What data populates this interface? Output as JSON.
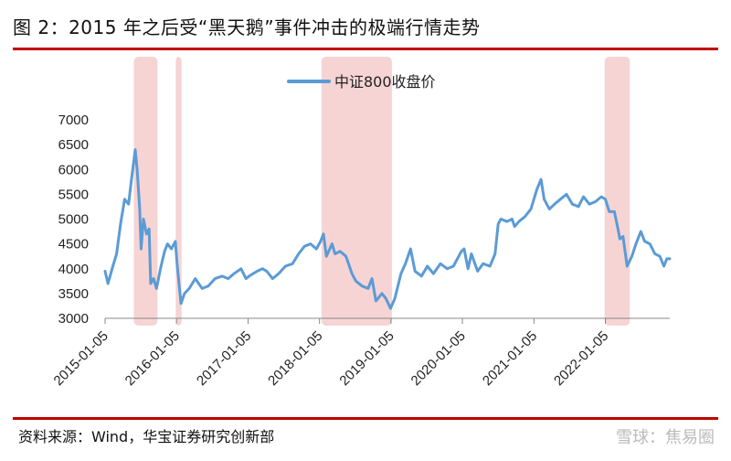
{
  "figure": {
    "title": "图 2：2015 年之后受“黑天鹅”事件冲击的极端行情走势",
    "source": "资料来源：Wind，华宝证券研究创新部",
    "watermark": "雪球：焦易圈"
  },
  "chart_data": {
    "type": "line",
    "title": "",
    "xlabel": "",
    "ylabel": "",
    "ylim": [
      3000,
      7000
    ],
    "yticks": [
      3000,
      3500,
      4000,
      4500,
      5000,
      5500,
      6000,
      6500,
      7000
    ],
    "xticks": [
      "2015-01-05",
      "2016-01-05",
      "2017-01-05",
      "2018-01-05",
      "2019-01-05",
      "2020-01-05",
      "2021-01-05",
      "2022-01-05"
    ],
    "xrange": [
      "2015-01-05",
      "2022-11-30"
    ],
    "legend": "top-center",
    "series": [
      {
        "name": "中证800收盘价",
        "color": "#5b9bd5",
        "points": [
          [
            "2015-01-05",
            3950
          ],
          [
            "2015-01-20",
            3700
          ],
          [
            "2015-02-10",
            4000
          ],
          [
            "2015-03-05",
            4300
          ],
          [
            "2015-03-25",
            4900
          ],
          [
            "2015-04-15",
            5400
          ],
          [
            "2015-05-05",
            5300
          ],
          [
            "2015-05-20",
            5800
          ],
          [
            "2015-06-08",
            6400
          ],
          [
            "2015-06-18",
            6000
          ],
          [
            "2015-07-01",
            5200
          ],
          [
            "2015-07-08",
            4400
          ],
          [
            "2015-07-20",
            5000
          ],
          [
            "2015-08-05",
            4700
          ],
          [
            "2015-08-18",
            4800
          ],
          [
            "2015-08-26",
            3700
          ],
          [
            "2015-09-10",
            3800
          ],
          [
            "2015-09-25",
            3600
          ],
          [
            "2015-10-15",
            4000
          ],
          [
            "2015-11-05",
            4350
          ],
          [
            "2015-11-20",
            4500
          ],
          [
            "2015-12-10",
            4400
          ],
          [
            "2015-12-30",
            4550
          ],
          [
            "2016-01-08",
            4100
          ],
          [
            "2016-01-18",
            3700
          ],
          [
            "2016-01-28",
            3300
          ],
          [
            "2016-02-15",
            3500
          ],
          [
            "2016-03-10",
            3600
          ],
          [
            "2016-04-10",
            3800
          ],
          [
            "2016-05-15",
            3600
          ],
          [
            "2016-06-15",
            3650
          ],
          [
            "2016-07-20",
            3800
          ],
          [
            "2016-08-25",
            3850
          ],
          [
            "2016-09-25",
            3800
          ],
          [
            "2016-10-25",
            3900
          ],
          [
            "2016-11-30",
            4000
          ],
          [
            "2016-12-25",
            3800
          ],
          [
            "2017-01-10",
            3850
          ],
          [
            "2017-02-20",
            3950
          ],
          [
            "2017-03-20",
            4000
          ],
          [
            "2017-04-10",
            3950
          ],
          [
            "2017-05-10",
            3800
          ],
          [
            "2017-06-10",
            3900
          ],
          [
            "2017-07-15",
            4050
          ],
          [
            "2017-08-20",
            4100
          ],
          [
            "2017-09-20",
            4300
          ],
          [
            "2017-10-20",
            4450
          ],
          [
            "2017-11-20",
            4500
          ],
          [
            "2017-12-20",
            4400
          ],
          [
            "2018-01-10",
            4550
          ],
          [
            "2018-01-25",
            4700
          ],
          [
            "2018-02-09",
            4250
          ],
          [
            "2018-03-10",
            4500
          ],
          [
            "2018-03-25",
            4300
          ],
          [
            "2018-04-20",
            4350
          ],
          [
            "2018-05-20",
            4250
          ],
          [
            "2018-06-20",
            3900
          ],
          [
            "2018-07-10",
            3750
          ],
          [
            "2018-08-10",
            3650
          ],
          [
            "2018-09-10",
            3600
          ],
          [
            "2018-09-30",
            3800
          ],
          [
            "2018-10-20",
            3350
          ],
          [
            "2018-11-20",
            3500
          ],
          [
            "2018-12-10",
            3400
          ],
          [
            "2019-01-03",
            3200
          ],
          [
            "2019-01-25",
            3400
          ],
          [
            "2019-02-25",
            3900
          ],
          [
            "2019-03-20",
            4100
          ],
          [
            "2019-04-15",
            4400
          ],
          [
            "2019-05-08",
            3950
          ],
          [
            "2019-06-10",
            3850
          ],
          [
            "2019-07-10",
            4050
          ],
          [
            "2019-08-10",
            3900
          ],
          [
            "2019-09-15",
            4100
          ],
          [
            "2019-10-20",
            4000
          ],
          [
            "2019-11-20",
            4050
          ],
          [
            "2019-12-31",
            4350
          ],
          [
            "2020-01-14",
            4400
          ],
          [
            "2020-02-03",
            4000
          ],
          [
            "2020-02-20",
            4300
          ],
          [
            "2020-03-23",
            3950
          ],
          [
            "2020-04-20",
            4100
          ],
          [
            "2020-05-25",
            4050
          ],
          [
            "2020-06-20",
            4300
          ],
          [
            "2020-07-06",
            4900
          ],
          [
            "2020-07-20",
            5000
          ],
          [
            "2020-08-20",
            4950
          ],
          [
            "2020-09-15",
            5000
          ],
          [
            "2020-09-28",
            4850
          ],
          [
            "2020-10-20",
            4950
          ],
          [
            "2020-11-20",
            5050
          ],
          [
            "2020-12-20",
            5200
          ],
          [
            "2021-01-20",
            5600
          ],
          [
            "2021-02-10",
            5800
          ],
          [
            "2021-02-26",
            5400
          ],
          [
            "2021-03-25",
            5200
          ],
          [
            "2021-04-20",
            5300
          ],
          [
            "2021-05-20",
            5400
          ],
          [
            "2021-06-20",
            5500
          ],
          [
            "2021-07-20",
            5300
          ],
          [
            "2021-08-20",
            5250
          ],
          [
            "2021-09-15",
            5450
          ],
          [
            "2021-10-15",
            5300
          ],
          [
            "2021-11-15",
            5350
          ],
          [
            "2021-12-15",
            5450
          ],
          [
            "2022-01-05",
            5400
          ],
          [
            "2022-01-25",
            5150
          ],
          [
            "2022-02-20",
            5150
          ],
          [
            "2022-03-10",
            4800
          ],
          [
            "2022-03-20",
            4600
          ],
          [
            "2022-04-05",
            4650
          ],
          [
            "2022-04-26",
            4050
          ],
          [
            "2022-05-20",
            4250
          ],
          [
            "2022-06-10",
            4500
          ],
          [
            "2022-07-05",
            4750
          ],
          [
            "2022-07-25",
            4550
          ],
          [
            "2022-08-20",
            4500
          ],
          [
            "2022-09-15",
            4300
          ],
          [
            "2022-10-10",
            4250
          ],
          [
            "2022-10-31",
            4050
          ],
          [
            "2022-11-15",
            4200
          ],
          [
            "2022-11-30",
            4200
          ]
        ]
      }
    ],
    "highlight_periods": [
      [
        "2015-06-01",
        "2015-09-30"
      ],
      [
        "2016-01-01",
        "2016-01-31"
      ],
      [
        "2018-01-15",
        "2019-01-10"
      ],
      [
        "2022-01-01",
        "2022-05-10"
      ]
    ],
    "highlight_color": "#f4cccc"
  }
}
